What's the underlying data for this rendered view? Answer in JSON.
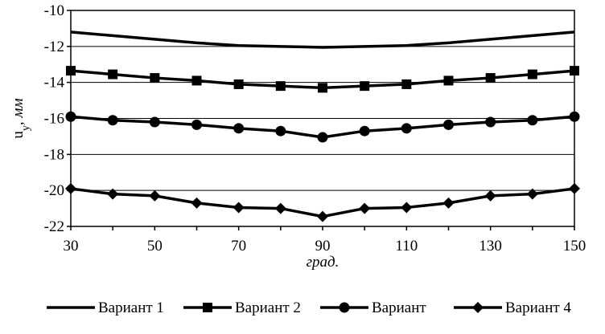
{
  "chart_data": {
    "type": "line",
    "xlabel": "град.",
    "ylabel_main": "u",
    "ylabel_sub": "y",
    "ylabel_unit": ", мм",
    "xlim": [
      30,
      150
    ],
    "ylim": [
      -22,
      -10
    ],
    "x_ticks": [
      30,
      50,
      70,
      90,
      110,
      130,
      150
    ],
    "y_ticks": [
      -10,
      -12,
      -14,
      -16,
      -18,
      -20,
      -22
    ],
    "grid": "horizontal",
    "legend_position": "bottom",
    "x": [
      30,
      40,
      50,
      60,
      70,
      80,
      90,
      100,
      110,
      120,
      130,
      140,
      150
    ],
    "series": [
      {
        "name": "Вариант 1",
        "marker": "none",
        "values": [
          -11.2,
          -11.4,
          -11.6,
          -11.8,
          -11.95,
          -12.0,
          -12.05,
          -12.0,
          -11.95,
          -11.8,
          -11.6,
          -11.4,
          -11.2
        ]
      },
      {
        "name": "Вариант 2",
        "marker": "square",
        "values": [
          -13.35,
          -13.55,
          -13.75,
          -13.9,
          -14.1,
          -14.2,
          -14.3,
          -14.2,
          -14.1,
          -13.9,
          -13.75,
          -13.55,
          -13.35
        ]
      },
      {
        "name": "Вариант",
        "marker": "circle",
        "values": [
          -15.9,
          -16.1,
          -16.2,
          -16.35,
          -16.55,
          -16.7,
          -17.05,
          -16.7,
          -16.55,
          -16.35,
          -16.2,
          -16.1,
          -15.9
        ]
      },
      {
        "name": "Вариант 4",
        "marker": "diamond",
        "values": [
          -19.9,
          -20.2,
          -20.3,
          -20.7,
          -20.95,
          -21.0,
          -21.45,
          -21.0,
          -20.95,
          -20.7,
          -20.3,
          -20.2,
          -19.9
        ]
      }
    ]
  }
}
